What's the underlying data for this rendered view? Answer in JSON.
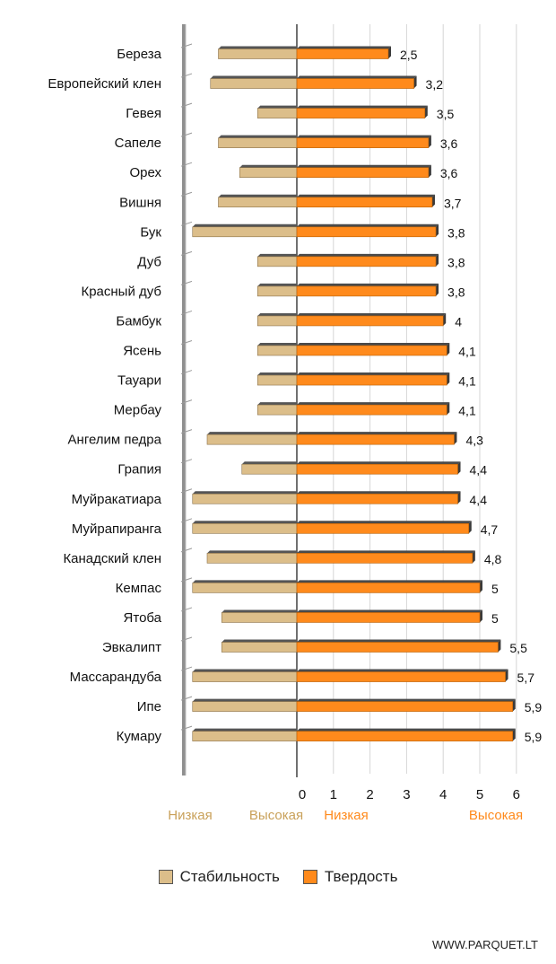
{
  "chart_data": {
    "type": "bar",
    "categories": [
      "Береза",
      "Европейский клен",
      "Гевея",
      "Сапеле",
      "Орех",
      "Вишня",
      "Бук",
      "Дуб",
      "Красный дуб",
      "Бамбук",
      "Ясень",
      "Тауари",
      "Мербау",
      "Ангелим педра",
      "Грапия",
      "Муйракатиара",
      "Муйрапиранга",
      "Канадский клен",
      "Кемпас",
      "Ятоба",
      "Эвкалипт",
      "Массарандуба",
      "Ипе",
      "Кумару"
    ],
    "series": [
      {
        "name": "Стабильность",
        "color": "#dcbe8a",
        "values": [
          0.7,
          0.77,
          0.35,
          0.7,
          0.51,
          0.7,
          0.93,
          0.35,
          0.35,
          0.35,
          0.35,
          0.35,
          0.35,
          0.8,
          0.49,
          0.93,
          0.93,
          0.8,
          0.93,
          0.67,
          0.67,
          0.93,
          0.93,
          0.93
        ]
      },
      {
        "name": "Твердость",
        "color": "#ff8a1c",
        "values": [
          2.5,
          3.2,
          3.5,
          3.6,
          3.6,
          3.7,
          3.8,
          3.8,
          3.8,
          4,
          4.1,
          4.1,
          4.1,
          4.3,
          4.4,
          4.4,
          4.7,
          4.8,
          5,
          5,
          5.5,
          5.7,
          5.9,
          5.9
        ],
        "value_labels": [
          "2,5",
          "3,2",
          "3,5",
          "3,6",
          "3,6",
          "3,7",
          "3,8",
          "3,8",
          "3,8",
          "4",
          "4,1",
          "4,1",
          "4,1",
          "4,3",
          "4,4",
          "4,4",
          "4,7",
          "4,8",
          "5",
          "5",
          "5,5",
          "5,7",
          "5,9",
          "5,9"
        ]
      }
    ],
    "hardness_axis": {
      "ticks": [
        "0",
        "1",
        "2",
        "3",
        "4",
        "5",
        "6"
      ],
      "ylim": [
        0,
        6
      ]
    },
    "stability_axis": {
      "ylim": [
        0,
        1
      ]
    },
    "scale_labels": {
      "stability_low": "Низкая",
      "stability_high": "Высокая",
      "hardness_low": "Низкая",
      "hardness_high": "Высокая",
      "stability_color": "#c9a15a",
      "hardness_color": "#ff8a1c"
    },
    "grid": true,
    "legend_position": "bottom"
  },
  "legend": {
    "stability": "Стабильность",
    "hardness": "Твердость"
  },
  "watermark": "WWW.PARQUET.LT"
}
